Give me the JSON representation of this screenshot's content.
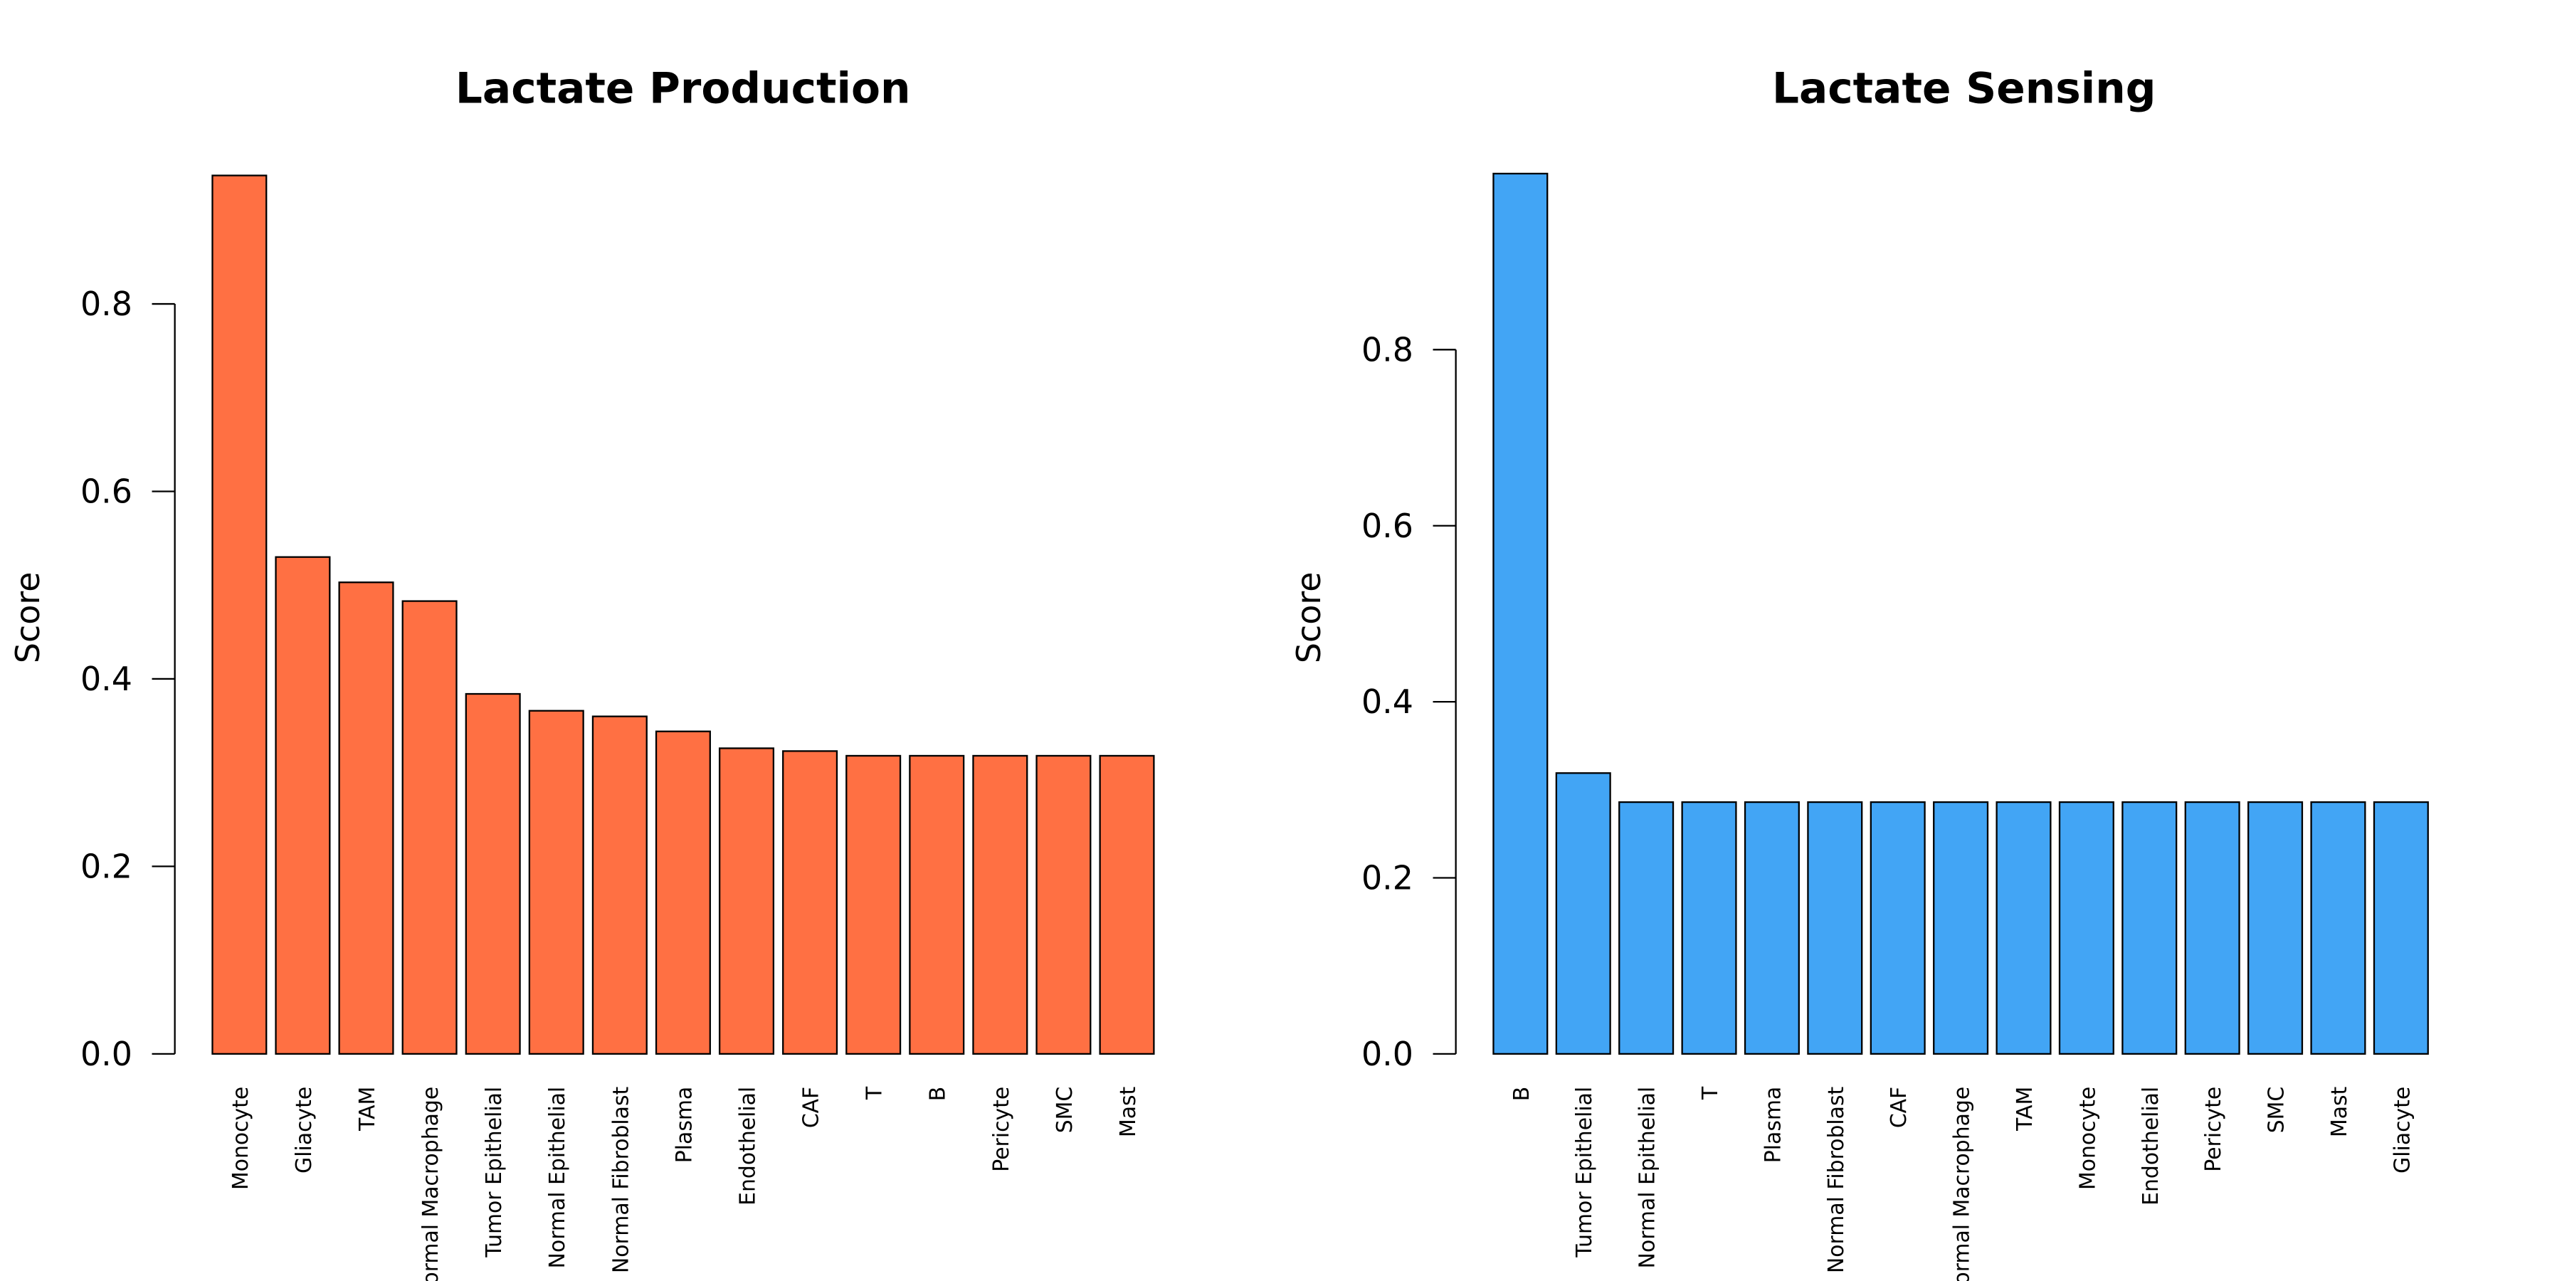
{
  "chart_data": [
    {
      "type": "bar",
      "title": "Lactate Production",
      "xlabel": "",
      "ylabel": "Score",
      "ylim": [
        0,
        0.94
      ],
      "yticks": [
        "0.0",
        "0.2",
        "0.4",
        "0.6",
        "0.8"
      ],
      "color": "#FF7043",
      "grid": false,
      "categories": [
        "Monocyte",
        "Gliacyte",
        "TAM",
        "Normal Macrophage",
        "Tumor Epithelial",
        "Normal Epithelial",
        "Normal Fibroblast",
        "Plasma",
        "Endothelial",
        "CAF",
        "T",
        "B",
        "Pericyte",
        "SMC",
        "Mast"
      ],
      "values": [
        0.937,
        0.53,
        0.503,
        0.483,
        0.384,
        0.366,
        0.36,
        0.344,
        0.326,
        0.323,
        0.318,
        0.318,
        0.318,
        0.318,
        0.318
      ]
    },
    {
      "type": "bar",
      "title": "Lactate Sensing",
      "xlabel": "",
      "ylabel": "Score",
      "ylim": [
        0,
        1.0
      ],
      "yticks": [
        "0.0",
        "0.2",
        "0.4",
        "0.6",
        "0.8"
      ],
      "color": "#42A5F5",
      "grid": false,
      "categories": [
        "B",
        "Tumor Epithelial",
        "Normal Epithelial",
        "T",
        "Plasma",
        "Normal Fibroblast",
        "CAF",
        "Normal Macrophage",
        "TAM",
        "Monocyte",
        "Endothelial",
        "Pericyte",
        "SMC",
        "Mast",
        "Gliacyte"
      ],
      "values": [
        1.0,
        0.319,
        0.286,
        0.286,
        0.286,
        0.286,
        0.286,
        0.286,
        0.286,
        0.286,
        0.286,
        0.286,
        0.286,
        0.286,
        0.286
      ]
    }
  ]
}
